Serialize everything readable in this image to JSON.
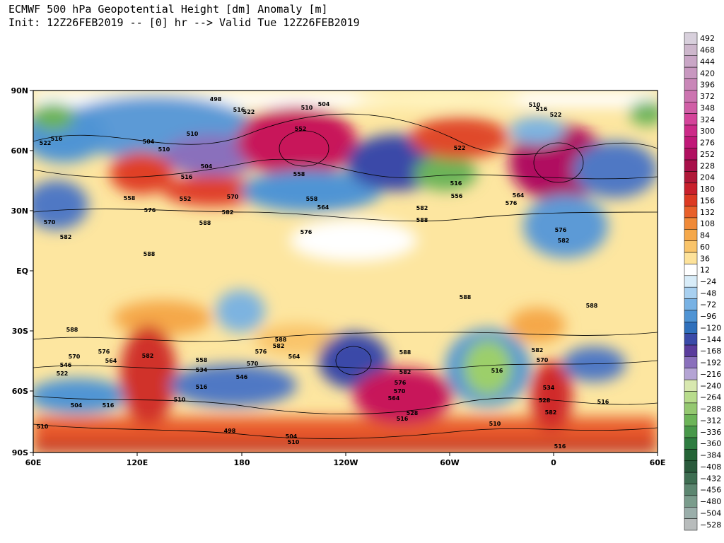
{
  "header": {
    "title": "ECMWF 500 hPa Geopotential Height [dm] Anomaly [m]",
    "subtitle": "Init: 12Z26FEB2019 -- [0] hr --> Valid Tue 12Z26FEB2019"
  },
  "map": {
    "x_labels": [
      "60E",
      "120E",
      "180",
      "120W",
      "60W",
      "0",
      "60E"
    ],
    "y_labels": [
      "90N",
      "60N",
      "30N",
      "EQ",
      "30S",
      "60S",
      "90S"
    ],
    "contour_labels": [
      "498",
      "516",
      "510",
      "504",
      "522",
      "552",
      "558",
      "558",
      "564",
      "576",
      "570",
      "582",
      "588",
      "558",
      "576",
      "552",
      "516",
      "504",
      "510",
      "504",
      "510",
      "516",
      "522",
      "570",
      "582",
      "588",
      "588",
      "588",
      "576",
      "564",
      "570",
      "546",
      "522",
      "582",
      "558",
      "534",
      "516",
      "510",
      "516",
      "504",
      "510",
      "498",
      "504",
      "510",
      "588",
      "582",
      "576",
      "570",
      "546",
      "564",
      "588",
      "582",
      "576",
      "570",
      "564",
      "528",
      "516",
      "588",
      "582",
      "556",
      "516",
      "576",
      "564",
      "522",
      "510",
      "516",
      "522",
      "576",
      "582",
      "588",
      "582",
      "570",
      "534",
      "528",
      "582",
      "516",
      "510",
      "516",
      "516"
    ]
  },
  "colorbar": {
    "labels": [
      "492",
      "468",
      "444",
      "420",
      "396",
      "372",
      "348",
      "324",
      "300",
      "276",
      "252",
      "228",
      "204",
      "180",
      "156",
      "132",
      "108",
      "84",
      "60",
      "36",
      "12",
      "−24",
      "−48",
      "−72",
      "−96",
      "−120",
      "−144",
      "−168",
      "−192",
      "−216",
      "−240",
      "−264",
      "−288",
      "−312",
      "−336",
      "−360",
      "−384",
      "−408",
      "−432",
      "−456",
      "−480",
      "−504",
      "−528"
    ],
    "colors": [
      "#d8d0dc",
      "#cdb7cc",
      "#c9a6c6",
      "#c898c0",
      "#c987b8",
      "#cc74b0",
      "#d05ea6",
      "#d4449a",
      "#cc2a88",
      "#c01878",
      "#b01060",
      "#a8104a",
      "#b01838",
      "#c8202c",
      "#dc3a22",
      "#e8602a",
      "#f08a38",
      "#f5a84a",
      "#f9c46a",
      "#fde29a",
      "#ffffff",
      "#d8ecf8",
      "#a8d0f0",
      "#78b2e4",
      "#4f94d4",
      "#2f70bc",
      "#3a4aa8",
      "#5a3c9c",
      "#8a70bc",
      "#b4a4d4",
      "#d8e8b0",
      "#b8dc8c",
      "#94c870",
      "#6cb458",
      "#48984a",
      "#2e7c40",
      "#246436",
      "#2a5a3c",
      "#3e6e52",
      "#5c8670",
      "#7a9c8c",
      "#9aaeaa",
      "#b8bcbc"
    ]
  }
}
